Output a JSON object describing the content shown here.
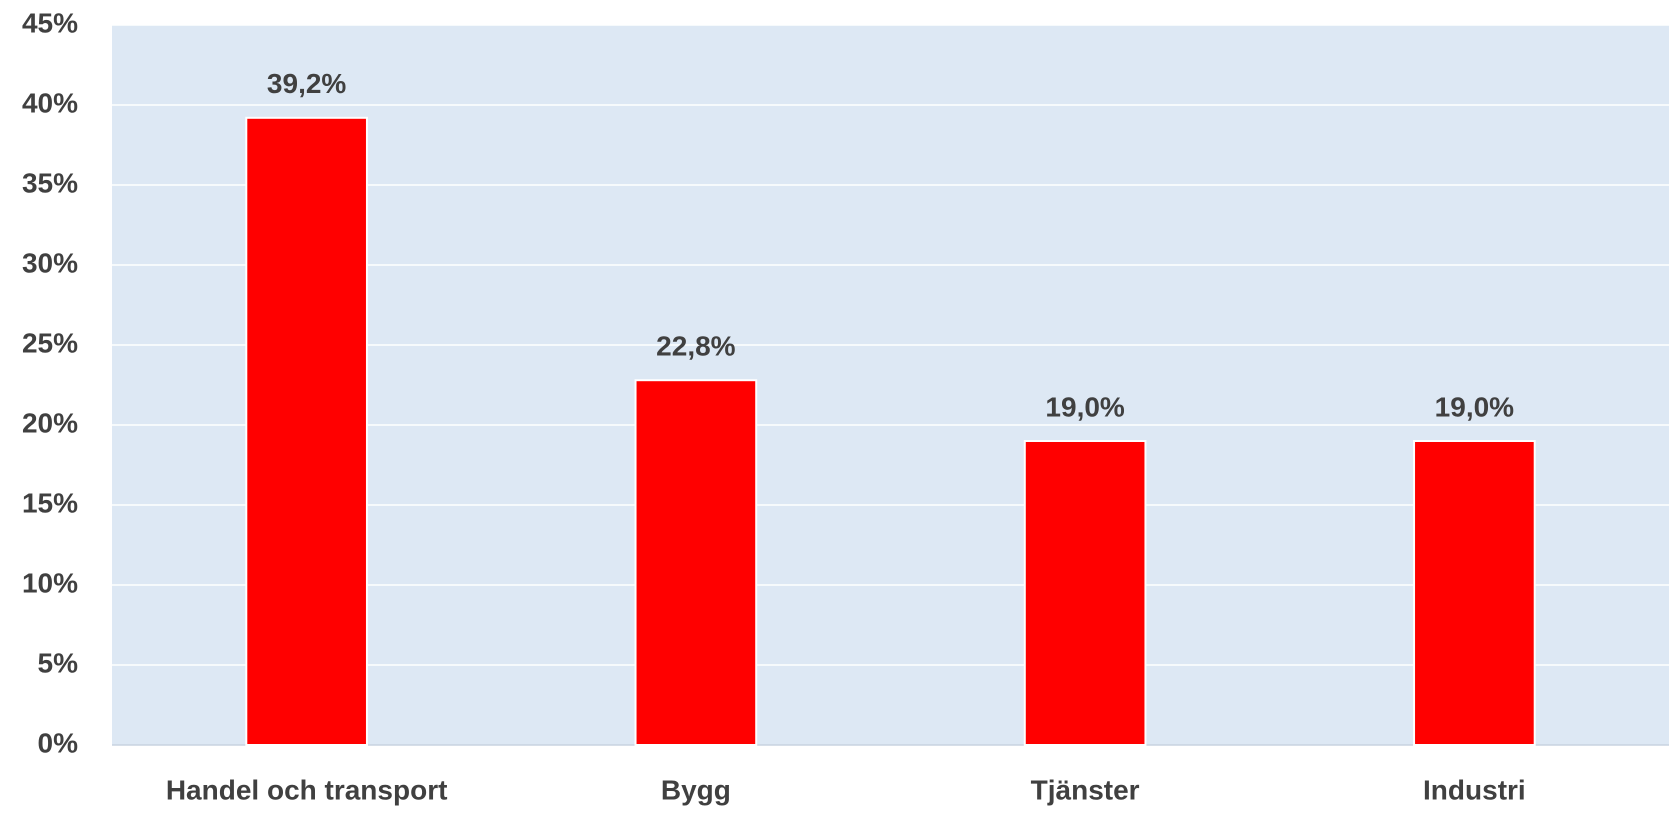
{
  "chart_data": {
    "type": "bar",
    "categories": [
      "Handel och transport",
      "Bygg",
      "Tjänster",
      "Industri"
    ],
    "values": [
      39.2,
      22.8,
      19.0,
      19.0
    ],
    "value_labels": [
      "39,2%",
      "22,8%",
      "19,0%",
      "19,0%"
    ],
    "color": "#ff0000",
    "ylim": [
      0,
      45
    ],
    "yticks": [
      {
        "value": 0,
        "label": "0%"
      },
      {
        "value": 5,
        "label": "5%"
      },
      {
        "value": 10,
        "label": "10%"
      },
      {
        "value": 15,
        "label": "15%"
      },
      {
        "value": 20,
        "label": "20%"
      },
      {
        "value": 25,
        "label": "25%"
      },
      {
        "value": 30,
        "label": "30%"
      },
      {
        "value": 35,
        "label": "35%"
      },
      {
        "value": 40,
        "label": "40%"
      },
      {
        "value": 45,
        "label": "45%"
      }
    ],
    "grid": true
  }
}
